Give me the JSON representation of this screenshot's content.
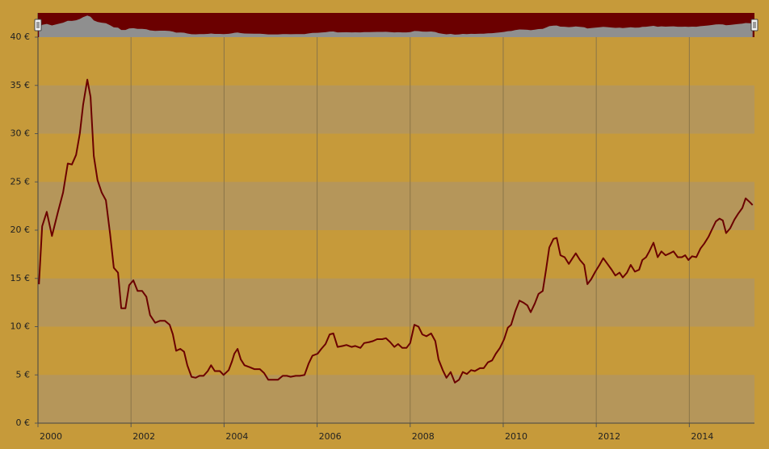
{
  "chart_data": {
    "type": "line",
    "x": [
      2000.02,
      2000.09,
      2000.19,
      2000.3,
      2000.43,
      2000.54,
      2000.64,
      2000.73,
      2000.82,
      2000.9,
      2000.97,
      2001.06,
      2001.13,
      2001.2,
      2001.28,
      2001.37,
      2001.46,
      2001.55,
      2001.63,
      2001.72,
      2001.79,
      2001.88,
      2001.96,
      2002.05,
      2002.14,
      2002.24,
      2002.33,
      2002.41,
      2002.52,
      2002.62,
      2002.73,
      2002.83,
      2002.9,
      2002.97,
      2003.06,
      2003.14,
      2003.21,
      2003.3,
      2003.39,
      2003.47,
      2003.56,
      2003.65,
      2003.72,
      2003.8,
      2003.91,
      2003.99,
      2004.1,
      2004.17,
      2004.22,
      2004.29,
      2004.36,
      2004.44,
      2004.55,
      2004.65,
      2004.77,
      2004.86,
      2004.95,
      2005.05,
      2005.16,
      2005.26,
      2005.35,
      2005.43,
      2005.54,
      2005.63,
      2005.73,
      2005.82,
      2005.9,
      2006.01,
      2006.09,
      2006.18,
      2006.27,
      2006.35,
      2006.44,
      2006.55,
      2006.63,
      2006.74,
      2006.82,
      2006.93,
      2007.01,
      2007.12,
      2007.2,
      2007.29,
      2007.4,
      2007.48,
      2007.57,
      2007.66,
      2007.74,
      2007.83,
      2007.92,
      2008.0,
      2008.09,
      2008.18,
      2008.26,
      2008.35,
      2008.45,
      2008.54,
      2008.61,
      2008.7,
      2008.78,
      2008.87,
      2008.96,
      2009.05,
      2009.13,
      2009.22,
      2009.31,
      2009.39,
      2009.5,
      2009.58,
      2009.67,
      2009.76,
      2009.84,
      2009.93,
      2010.02,
      2010.1,
      2010.17,
      2010.26,
      2010.35,
      2010.43,
      2010.52,
      2010.59,
      2010.68,
      2010.76,
      2010.85,
      2010.92,
      2010.99,
      2011.08,
      2011.15,
      2011.23,
      2011.32,
      2011.41,
      2011.49,
      2011.56,
      2011.65,
      2011.74,
      2011.81,
      2011.89,
      2011.98,
      2012.07,
      2012.15,
      2012.24,
      2012.33,
      2012.41,
      2012.5,
      2012.57,
      2012.66,
      2012.74,
      2012.83,
      2012.92,
      2012.99,
      2013.07,
      2013.14,
      2013.23,
      2013.32,
      2013.4,
      2013.49,
      2013.58,
      2013.66,
      2013.75,
      2013.84,
      2013.91,
      2013.98,
      2014.06,
      2014.15,
      2014.24,
      2014.32,
      2014.41,
      2014.48,
      2014.57,
      2014.65,
      2014.72,
      2014.79,
      2014.88,
      2014.97,
      2015.05,
      2015.14,
      2015.21,
      2015.3,
      2015.36
    ],
    "series": [
      {
        "color": "#6b0000",
        "values": [
          14.4,
          20.4,
          21.9,
          19.4,
          21.9,
          23.9,
          26.9,
          26.8,
          27.8,
          30.0,
          33.0,
          35.6,
          33.8,
          27.7,
          25.2,
          23.9,
          23.1,
          19.6,
          16.1,
          15.6,
          11.9,
          11.9,
          14.3,
          14.8,
          13.7,
          13.7,
          13.1,
          11.2,
          10.4,
          10.6,
          10.6,
          10.2,
          9.2,
          7.5,
          7.7,
          7.4,
          6.0,
          4.8,
          4.7,
          4.9,
          4.9,
          5.4,
          6.0,
          5.4,
          5.4,
          5.0,
          5.5,
          6.4,
          7.2,
          7.7,
          6.6,
          6.0,
          5.8,
          5.6,
          5.6,
          5.2,
          4.5,
          4.5,
          4.5,
          4.9,
          4.9,
          4.8,
          4.9,
          4.9,
          5.0,
          6.2,
          7.0,
          7.2,
          7.7,
          8.2,
          9.2,
          9.3,
          7.9,
          8.0,
          8.1,
          7.9,
          8.0,
          7.8,
          8.3,
          8.4,
          8.5,
          8.7,
          8.7,
          8.8,
          8.4,
          7.9,
          8.2,
          7.8,
          7.8,
          8.3,
          10.2,
          10.0,
          9.2,
          9.0,
          9.3,
          8.5,
          6.6,
          5.5,
          4.7,
          5.3,
          4.2,
          4.5,
          5.3,
          5.1,
          5.5,
          5.4,
          5.7,
          5.7,
          6.3,
          6.5,
          7.2,
          7.8,
          8.7,
          9.9,
          10.2,
          11.6,
          12.7,
          12.5,
          12.2,
          11.5,
          12.4,
          13.4,
          13.7,
          15.9,
          18.2,
          19.1,
          19.2,
          17.4,
          17.2,
          16.5,
          17.1,
          17.6,
          16.9,
          16.4,
          14.4,
          14.9,
          15.7,
          16.4,
          17.1,
          16.5,
          15.9,
          15.3,
          15.6,
          15.1,
          15.6,
          16.4,
          15.7,
          15.9,
          16.9,
          17.2,
          17.8,
          18.7,
          17.2,
          17.8,
          17.4,
          17.6,
          17.8,
          17.2,
          17.2,
          17.4,
          16.9,
          17.3,
          17.2,
          18.1,
          18.6,
          19.3,
          20.0,
          20.9,
          21.2,
          21.0,
          19.7,
          20.2,
          21.1,
          21.7,
          22.3,
          23.3,
          22.9,
          22.6
        ]
      }
    ],
    "xlim": [
      2000,
      2015.4
    ],
    "xticks": [
      2000,
      2002,
      2004,
      2006,
      2008,
      2010,
      2012,
      2014
    ],
    "ylim": [
      0,
      40
    ],
    "yticks": [
      {
        "value": 0,
        "label": "0 €"
      },
      {
        "value": 5,
        "label": "5 €"
      },
      {
        "value": 10,
        "label": "10 €"
      },
      {
        "value": 15,
        "label": "15 €"
      },
      {
        "value": 20,
        "label": "20 €"
      },
      {
        "value": 25,
        "label": "25 €"
      },
      {
        "value": 30,
        "label": "30 €"
      },
      {
        "value": 35,
        "label": "35 €"
      },
      {
        "value": 40,
        "label": "40 €"
      }
    ],
    "grid": true,
    "alternate_bands": true,
    "navigator": true
  }
}
